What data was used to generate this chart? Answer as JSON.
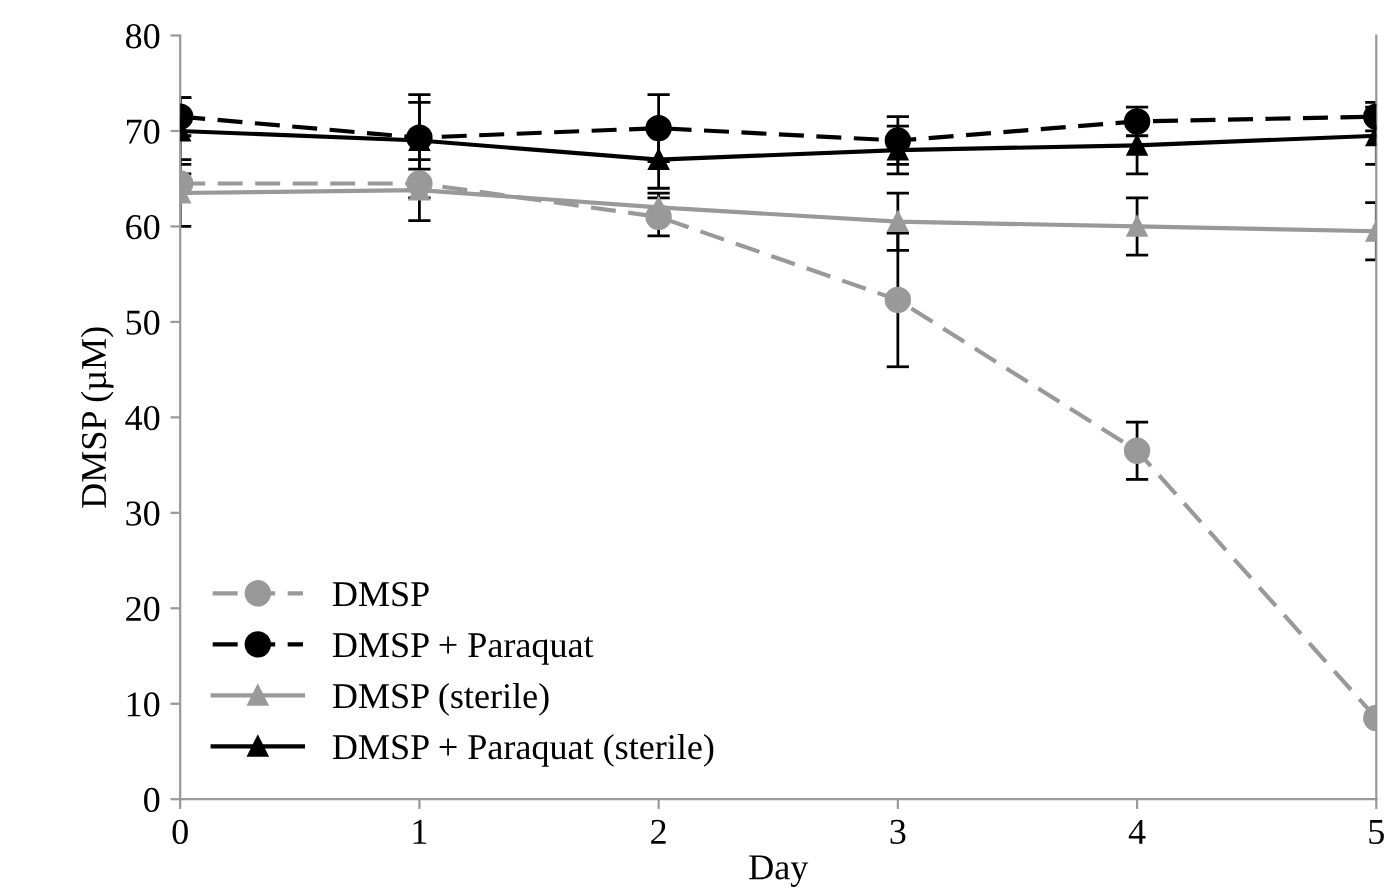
{
  "chart_data": {
    "type": "line",
    "xlabel": "Day",
    "ylabel": "DMSP (µM)",
    "x": [
      0,
      1,
      2,
      3,
      4,
      5
    ],
    "xlim": [
      0,
      5
    ],
    "xticks": [
      0,
      1,
      2,
      3,
      4,
      5
    ],
    "ylim": [
      0,
      80
    ],
    "yticks": [
      0,
      10,
      20,
      30,
      40,
      50,
      60,
      70,
      80
    ],
    "grid": false,
    "legend": "bottom left",
    "series": [
      {
        "name": "DMSP",
        "color": "#999999",
        "marker": "circle",
        "line_style": "dashed",
        "values": [
          64.5,
          64.5,
          61,
          52.3,
          36.5,
          8.5
        ],
        "errors": [
          1,
          1.5,
          2,
          7,
          3,
          null
        ]
      },
      {
        "name": "DMSP + Paraquat",
        "color": "#000000",
        "marker": "circle",
        "line_style": "dashed",
        "values": [
          71.5,
          69.3,
          70.3,
          69,
          71,
          71.5
        ],
        "errors": [
          2,
          4.5,
          3.5,
          2.5,
          1.5,
          1.5
        ]
      },
      {
        "name": "DMSP (sterile)",
        "color": "#999999",
        "marker": "triangle",
        "line_style": "solid",
        "values": [
          63.5,
          63.8,
          62,
          60.5,
          60,
          59.5
        ],
        "errors": [
          3.5,
          3.2,
          1.5,
          3,
          3,
          3
        ]
      },
      {
        "name": "DMSP + Paraquat (sterile)",
        "color": "#000000",
        "marker": "triangle",
        "line_style": "solid",
        "values": [
          70,
          69,
          67,
          68,
          68.5,
          69.5
        ],
        "errors": [
          3.5,
          4,
          3,
          2.5,
          3,
          3
        ]
      }
    ]
  }
}
